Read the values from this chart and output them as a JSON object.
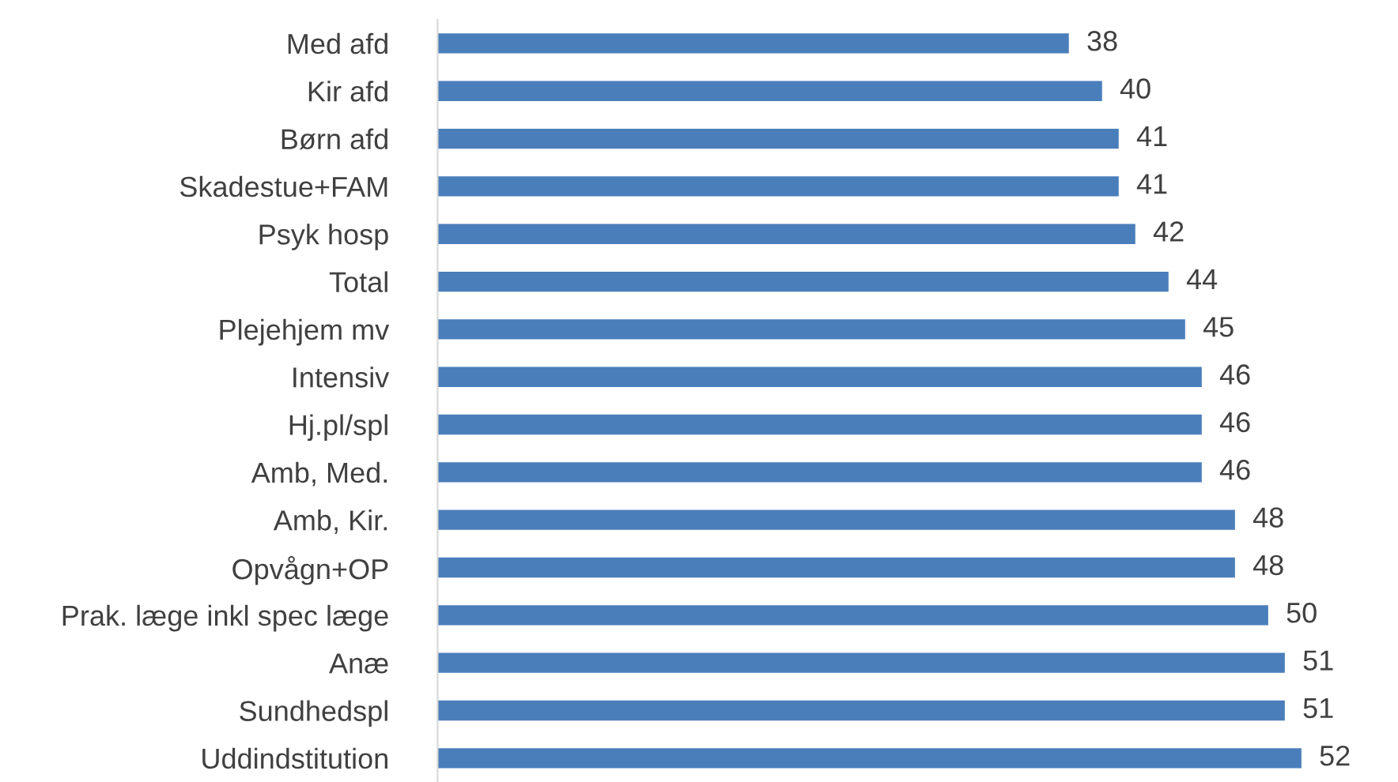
{
  "chart_data": {
    "type": "bar",
    "orientation": "horizontal",
    "categories": [
      "Med afd",
      "Kir afd",
      "Børn afd",
      "Skadestue+FAM",
      "Psyk hosp",
      "Total",
      "Plejehjem mv",
      "Intensiv",
      "Hj.pl/spl",
      "Amb, Med.",
      "Amb, Kir.",
      "Opvågn+OP",
      "Prak. læge inkl spec læge",
      "Anæ",
      "Sundhedspl",
      "Uddindstitution"
    ],
    "values": [
      38,
      40,
      41,
      41,
      42,
      44,
      45,
      46,
      46,
      46,
      48,
      48,
      50,
      51,
      51,
      52
    ],
    "color": "#4a7ebb",
    "data_labels": true,
    "grid": false,
    "legend": false
  }
}
